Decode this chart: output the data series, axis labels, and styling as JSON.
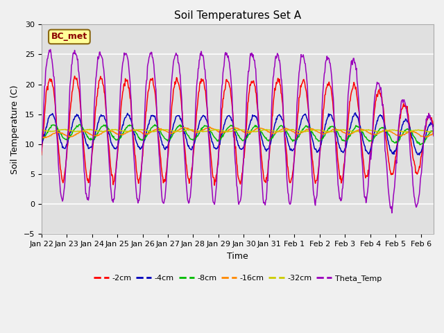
{
  "title": "Soil Temperatures Set A",
  "xlabel": "Time",
  "ylabel": "Soil Temperature (C)",
  "ylim": [
    -5,
    30
  ],
  "annotation": "BC_met",
  "colors": {
    "-2cm": "#FF0000",
    "-4cm": "#0000BB",
    "-8cm": "#00BB00",
    "-16cm": "#FF8800",
    "-32cm": "#CCCC00",
    "Theta_Temp": "#9900BB"
  },
  "background_color": "#E0E0E0",
  "fig_color": "#F0F0F0",
  "grid_color": "#FFFFFF",
  "tick_labels": [
    "Jan 22",
    "Jan 23",
    "Jan 24",
    "Jan 25",
    "Jan 26",
    "Jan 27",
    "Jan 28",
    "Jan 29",
    "Jan 30",
    "Jan 31",
    "Feb 1",
    "Feb 2",
    "Feb 3",
    "Feb 4",
    "Feb 5",
    "Feb 6"
  ],
  "yticks": [
    -5,
    0,
    5,
    10,
    15,
    20,
    25,
    30
  ]
}
